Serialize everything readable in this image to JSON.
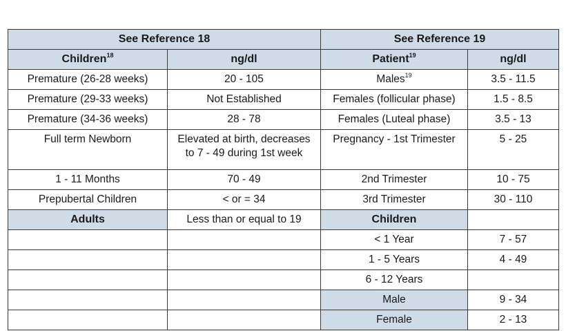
{
  "ref18": {
    "title": "See Reference 18",
    "col1_header": "Children",
    "col1_header_sup": "18",
    "col2_header": "ng/dl",
    "rows": [
      {
        "label": "Premature (26-28 weeks)",
        "value": "20 - 105"
      },
      {
        "label": "Premature (29-33 weeks)",
        "value": "Not Established"
      },
      {
        "label": "Premature (34-36 weeks)",
        "value": "28 - 78"
      },
      {
        "label": "Full term Newborn",
        "value_line1": "Elevated at birth, decreases",
        "value_line2": "to 7 - 49 during 1st week"
      },
      {
        "label": "1 - 11 Months",
        "value": "70 - 49"
      },
      {
        "label": "Prepubertal Children",
        "value": "< or = 34"
      },
      {
        "label": "Adults",
        "value": "Less than or equal to 19"
      }
    ]
  },
  "ref19": {
    "title": "See Reference 19",
    "col1_header": "Patient",
    "col1_header_sup": "19",
    "col2_header": "ng/dl",
    "rows": [
      {
        "label": "Males",
        "label_sup": "19",
        "value": "3.5 - 11.5"
      },
      {
        "label": "Females (follicular phase)",
        "value": "1.5 - 8.5"
      },
      {
        "label": "Females (Luteal phase)",
        "value": "3.5 - 13"
      },
      {
        "label": "Pregnancy - 1st Trimester",
        "value": "5 - 25"
      },
      {
        "label": "2nd Trimester",
        "value": "10 - 75"
      },
      {
        "label": "3rd Trimester",
        "value": "30 - 110"
      },
      {
        "label": "Children",
        "value": ""
      },
      {
        "label": "< 1 Year",
        "value": "7 - 57"
      },
      {
        "label": "1 - 5 Years",
        "value": "4 - 49"
      },
      {
        "label": "6 - 12 Years",
        "value": ""
      },
      {
        "label": "Male",
        "value": "9 - 34"
      },
      {
        "label": "Female",
        "value": "2 - 13"
      }
    ]
  },
  "colors": {
    "header_bg": "#cfdbe6",
    "border": "#3a3a3a"
  }
}
